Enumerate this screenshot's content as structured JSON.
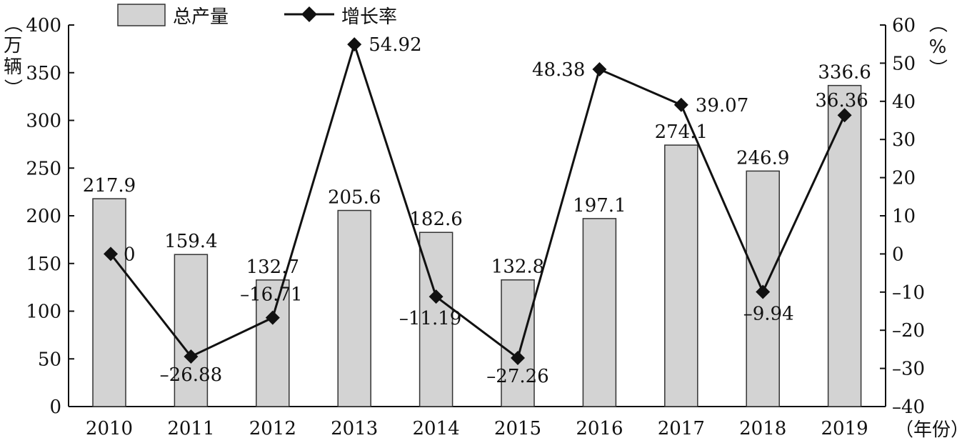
{
  "chart_data": {
    "type": "bar",
    "categories": [
      "2010",
      "2011",
      "2012",
      "2013",
      "2014",
      "2015",
      "2016",
      "2017",
      "2018",
      "2019"
    ],
    "series": [
      {
        "name": "总产量",
        "type": "bar",
        "axis": "left",
        "values": [
          217.9,
          159.4,
          132.7,
          205.6,
          182.6,
          132.8,
          197.1,
          274.1,
          246.9,
          336.6
        ],
        "color": "#d3d3d3"
      },
      {
        "name": "增长率",
        "type": "line",
        "axis": "right",
        "values": [
          0,
          -26.88,
          -16.71,
          54.92,
          -11.19,
          -27.26,
          48.38,
          39.07,
          -9.94,
          36.36
        ],
        "color": "#111111"
      }
    ],
    "bar_labels": [
      "217.9",
      "159.4",
      "132.7",
      "205.6",
      "182.6",
      "132.8",
      "197.1",
      "274.1",
      "246.9",
      "336.6"
    ],
    "line_labels": [
      "0",
      "–26.88",
      "–16.71",
      "54.92",
      "–11.19",
      "–27.26",
      "48.38",
      "39.07",
      "–9.94",
      "36.36"
    ],
    "ylim_left": [
      0,
      400
    ],
    "yticks_left": [
      "0",
      "50",
      "100",
      "150",
      "200",
      "250",
      "300",
      "350",
      "400"
    ],
    "ylim_right": [
      -40,
      60
    ],
    "yticks_right": [
      "–40",
      "–30",
      "–20",
      "–10",
      "0",
      "10",
      "20",
      "30",
      "40",
      "50",
      "60"
    ],
    "ylabel_left": [
      "（",
      "万",
      "辆",
      "）"
    ],
    "ylabel_right": [
      "（",
      "%",
      "）"
    ],
    "xlabel": "（年份）",
    "legend_position": "top",
    "grid": false
  }
}
